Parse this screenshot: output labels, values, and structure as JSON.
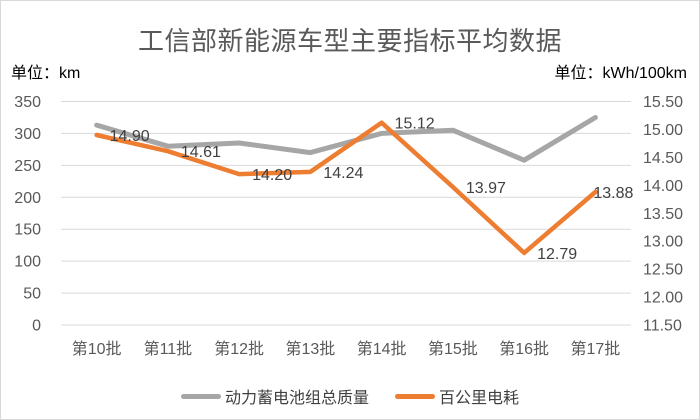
{
  "chart_data": {
    "type": "line",
    "title": "工信部新能源车型主要指标平均数据",
    "unit_left": "单位：km",
    "unit_right": "单位：kWh/100km",
    "categories": [
      "第10批",
      "第11批",
      "第12批",
      "第13批",
      "第14批",
      "第15批",
      "第16批",
      "第17批"
    ],
    "series": [
      {
        "name": "动力蓄电池组总质量",
        "axis": "left",
        "color": "#A6A6A6",
        "stroke_width": 5,
        "values": [
          313,
          280,
          285,
          270,
          300,
          305,
          258,
          325
        ],
        "show_labels": false,
        "labels": []
      },
      {
        "name": "百公里电耗",
        "axis": "right",
        "color": "#ED7D31",
        "stroke_width": 4.5,
        "values": [
          14.9,
          14.61,
          14.2,
          14.24,
          15.12,
          13.97,
          12.79,
          13.88
        ],
        "show_labels": true,
        "labels": [
          "14.90",
          "14.61",
          "14.20",
          "14.24",
          "15.12",
          "13.97",
          "12.79",
          "13.88"
        ]
      }
    ],
    "axis_left": {
      "min": 0,
      "max": 350,
      "step": 50,
      "tick_labels": [
        "350",
        "300",
        "250",
        "200",
        "150",
        "100",
        "50",
        "0"
      ]
    },
    "axis_right": {
      "min": 11.5,
      "max": 15.5,
      "step": 0.5,
      "tick_labels": [
        "15.50",
        "15.00",
        "14.50",
        "14.00",
        "13.50",
        "13.00",
        "12.50",
        "12.00",
        "11.50"
      ]
    },
    "grid": "horizontal",
    "legend_position": "bottom",
    "colors": {
      "grid": "#D9D9D9",
      "tick_text": "#595959",
      "x_label_text": "#595959",
      "data_label_text": "#404040",
      "title_text": "#595959",
      "unit_text": "#000000",
      "legend_text": "#404040",
      "background": "#FFFFFF",
      "border": "#D9D9D9"
    }
  }
}
